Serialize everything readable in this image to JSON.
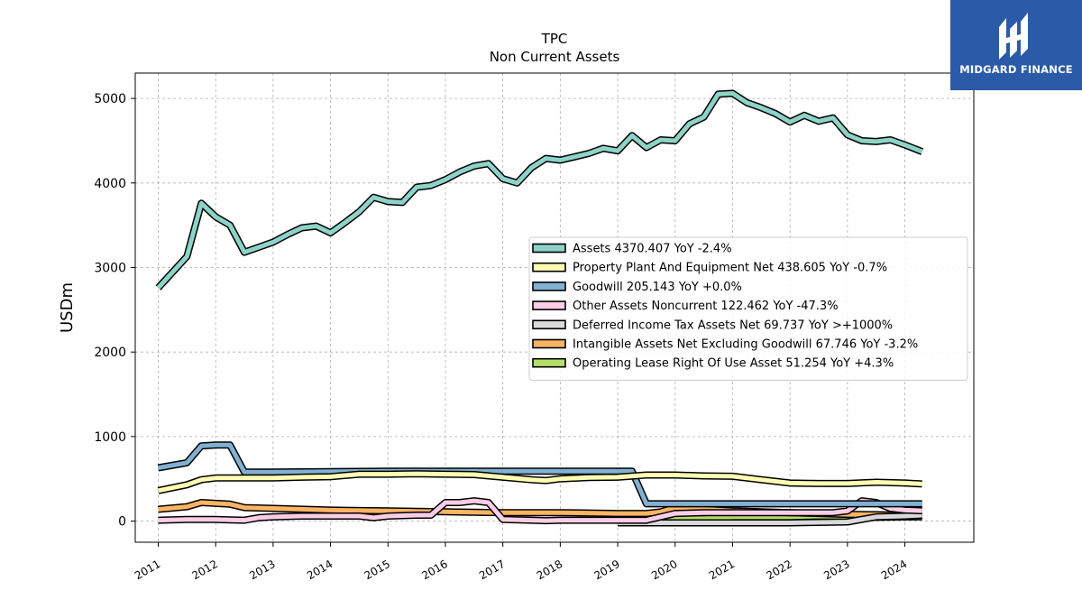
{
  "brand": {
    "name": "MIDGARD FINANCE",
    "bg_color": "#2a5aa8",
    "icon": "midgard-logo-icon"
  },
  "chart_data": {
    "type": "line",
    "title": "TPC",
    "subtitle": "Non Current  Assets",
    "xlabel": "",
    "ylabel": "USDm",
    "xlim": [
      2010.6,
      2025.2
    ],
    "ylim": [
      -250,
      5300
    ],
    "y_ticks": [
      0,
      1000,
      2000,
      3000,
      4000,
      5000
    ],
    "x_ticks": [
      2011,
      2012,
      2013,
      2014,
      2015,
      2016,
      2017,
      2018,
      2019,
      2020,
      2021,
      2022,
      2023,
      2024
    ],
    "grid": true,
    "legend_position": "center-right",
    "series": [
      {
        "name": "Assets  4370.407 YoY -2.4%",
        "color": "#8dd3c7",
        "x": [
          2011.0,
          2011.5,
          2011.75,
          2012.0,
          2012.25,
          2012.5,
          2012.75,
          2013.0,
          2013.25,
          2013.5,
          2013.75,
          2014.0,
          2014.25,
          2014.5,
          2014.75,
          2015.0,
          2015.25,
          2015.5,
          2015.75,
          2016.0,
          2016.25,
          2016.5,
          2016.75,
          2017.0,
          2017.25,
          2017.5,
          2017.75,
          2018.0,
          2018.25,
          2018.5,
          2018.75,
          2019.0,
          2019.25,
          2019.5,
          2019.75,
          2020.0,
          2020.25,
          2020.5,
          2020.75,
          2021.0,
          2021.25,
          2021.5,
          2021.75,
          2022.0,
          2022.25,
          2022.5,
          2022.75,
          2023.0,
          2023.25,
          2023.5,
          2023.75,
          2024.0,
          2024.3
        ],
        "values": [
          2760,
          3130,
          3760,
          3600,
          3500,
          3180,
          3240,
          3300,
          3390,
          3470,
          3490,
          3410,
          3530,
          3660,
          3830,
          3780,
          3770,
          3950,
          3970,
          4040,
          4130,
          4200,
          4230,
          4050,
          4000,
          4180,
          4290,
          4270,
          4310,
          4350,
          4410,
          4380,
          4560,
          4420,
          4510,
          4500,
          4700,
          4780,
          5050,
          5060,
          4950,
          4890,
          4820,
          4720,
          4800,
          4730,
          4770,
          4570,
          4500,
          4490,
          4510,
          4450,
          4370
        ]
      },
      {
        "name": "Property Plant And Equipment Net  438.605 YoY -0.7%",
        "color": "#ffffb3",
        "x": [
          2011.0,
          2011.5,
          2011.75,
          2012.0,
          2012.5,
          2013.0,
          2013.5,
          2014.0,
          2014.5,
          2015.0,
          2015.5,
          2016.0,
          2016.5,
          2017.0,
          2017.5,
          2017.75,
          2018.0,
          2018.5,
          2019.0,
          2019.5,
          2020.0,
          2020.5,
          2021.0,
          2021.5,
          2022.0,
          2022.5,
          2023.0,
          2023.5,
          2024.0,
          2024.3
        ],
        "values": [
          360,
          430,
          490,
          510,
          510,
          510,
          520,
          525,
          555,
          555,
          560,
          555,
          550,
          520,
          490,
          480,
          500,
          515,
          520,
          545,
          545,
          535,
          530,
          490,
          450,
          445,
          445,
          460,
          450,
          440
        ]
      },
      {
        "name": "Goodwill  205.143 YoY +0.0%",
        "color": "#80b1d3",
        "x": [
          2011.0,
          2011.5,
          2011.75,
          2012.0,
          2012.25,
          2012.5,
          2013.0,
          2014.0,
          2015.0,
          2016.0,
          2017.0,
          2018.0,
          2019.0,
          2019.25,
          2019.5,
          2020.0,
          2021.0,
          2022.0,
          2023.0,
          2024.0,
          2024.3
        ],
        "values": [
          630,
          690,
          890,
          900,
          900,
          580,
          580,
          585,
          590,
          590,
          590,
          590,
          590,
          590,
          205,
          205,
          205,
          205,
          205,
          205,
          205
        ]
      },
      {
        "name": "Other Assets Noncurrent  122.462 YoY -47.3%",
        "color": "#fccde5",
        "x": [
          2011.0,
          2011.5,
          2011.75,
          2012.0,
          2012.25,
          2012.5,
          2012.75,
          2013.0,
          2013.5,
          2014.0,
          2014.5,
          2014.75,
          2015.0,
          2015.5,
          2015.75,
          2016.0,
          2016.25,
          2016.5,
          2016.75,
          2017.0,
          2017.5,
          2017.75,
          2018.0,
          2019.0,
          2019.5,
          2020.0,
          2020.5,
          2021.0,
          2021.5,
          2022.0,
          2022.5,
          2022.75,
          2023.0,
          2023.25,
          2023.5,
          2023.75,
          2024.0,
          2024.3
        ],
        "values": [
          10,
          20,
          20,
          20,
          15,
          10,
          40,
          50,
          60,
          60,
          60,
          40,
          60,
          70,
          70,
          220,
          220,
          240,
          220,
          20,
          10,
          5,
          10,
          10,
          10,
          90,
          100,
          100,
          100,
          100,
          100,
          100,
          120,
          240,
          220,
          150,
          130,
          122
        ]
      },
      {
        "name": "Deferred Income Tax Assets Net  69.737 YoY >+1000%",
        "color": "#d9d9d9",
        "x": [
          2019.0,
          2019.5,
          2020.0,
          2020.5,
          2021.0,
          2021.5,
          2022.0,
          2022.5,
          2023.0,
          2023.25,
          2023.5,
          2024.0,
          2024.3
        ],
        "values": [
          -20,
          -20,
          -20,
          -20,
          -20,
          -20,
          -20,
          -15,
          -10,
          20,
          50,
          60,
          70
        ]
      },
      {
        "name": "Intangible Assets Net Excluding Goodwill  67.746 YoY -3.2%",
        "color": "#fdb462",
        "x": [
          2011.0,
          2011.5,
          2011.75,
          2012.0,
          2012.25,
          2012.5,
          2013.0,
          2014.0,
          2015.0,
          2016.0,
          2017.0,
          2018.0,
          2019.0,
          2019.5,
          2019.75,
          2020.0,
          2020.5,
          2021.0,
          2021.5,
          2022.0,
          2022.5,
          2023.0,
          2023.5,
          2024.0,
          2024.3
        ],
        "values": [
          140,
          170,
          220,
          210,
          200,
          160,
          150,
          130,
          120,
          110,
          100,
          100,
          90,
          90,
          110,
          160,
          140,
          120,
          110,
          100,
          90,
          80,
          75,
          70,
          68
        ]
      },
      {
        "name": "Operating Lease Right Of Use Asset  51.254 YoY +4.3%",
        "color": "#b3de69",
        "x": [
          2019.5,
          2020.0,
          2020.5,
          2021.0,
          2021.5,
          2022.0,
          2022.5,
          2023.0,
          2023.5,
          2024.0,
          2024.3
        ],
        "values": [
          40,
          35,
          30,
          50,
          50,
          50,
          60,
          55,
          45,
          50,
          51
        ]
      }
    ]
  }
}
